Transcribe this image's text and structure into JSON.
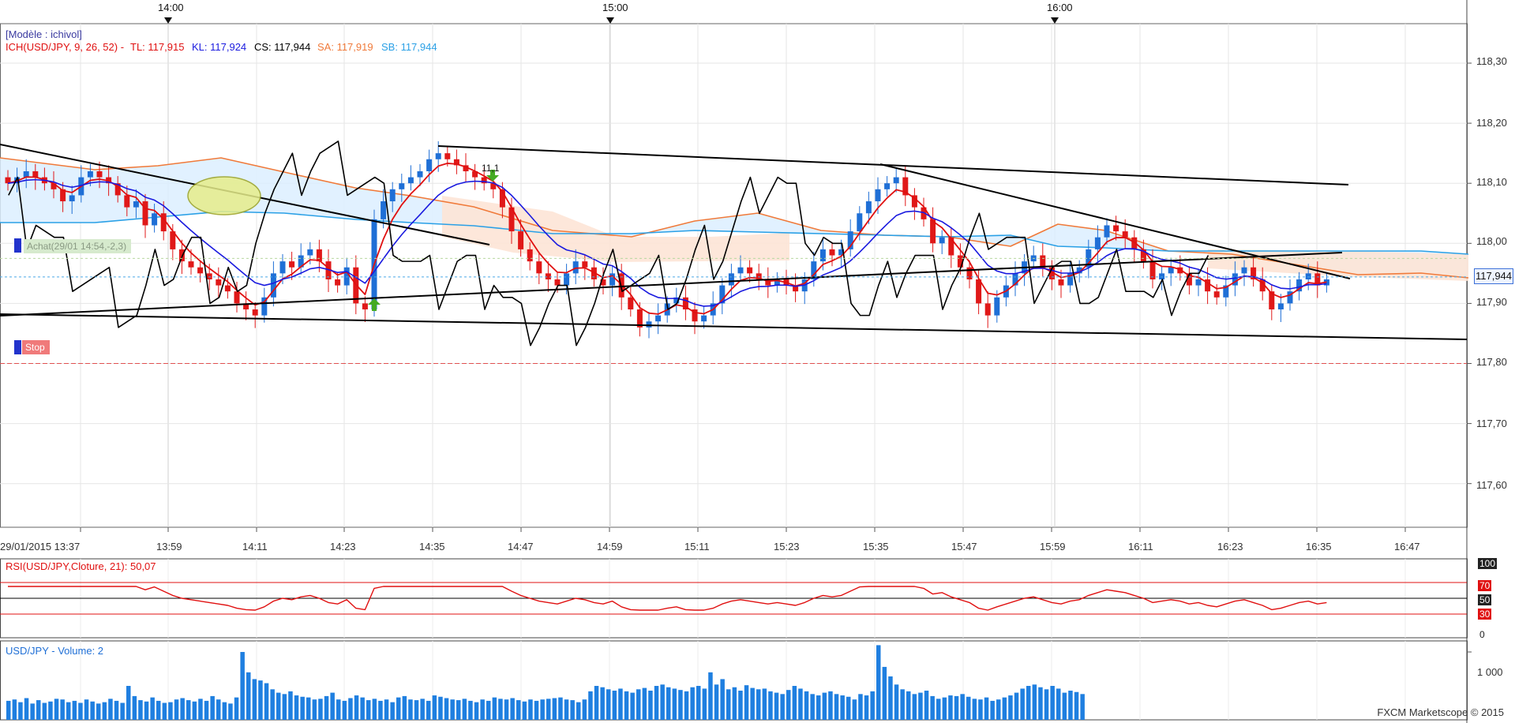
{
  "top_axis": {
    "ticks": [
      "14:00",
      "15:00",
      "16:00"
    ]
  },
  "main": {
    "model_label": "[Modèle : ichivol]",
    "legend": {
      "ich": "ICH(USD/JPY, 9, 26, 52) -",
      "tl": "TL: 117,915",
      "kl": "KL: 117,924",
      "cs": "CS: 117,944",
      "sa": "SA: 117,919",
      "sb": "SB: 117,944"
    },
    "y_ticks": [
      "118,30",
      "118,20",
      "118,10",
      "118,00",
      "117,90",
      "117,80",
      "117,70",
      "117,60"
    ],
    "last_price": "117,944",
    "buy_label": "Achat(29/01 14:54,-2,3)",
    "stop_label": "Stop",
    "trade_annotation": "11,1",
    "colors": {
      "tl": "#e01010",
      "kl": "#1a1adf",
      "cs": "#000000",
      "sa": "#f07a3a",
      "sb": "#2aa0e6",
      "up": "#1f6fd6",
      "down": "#e01818"
    }
  },
  "x_axis": {
    "labels": [
      "29/01/2015 13:37",
      "13:59",
      "14:11",
      "14:23",
      "14:35",
      "14:47",
      "14:59",
      "15:11",
      "15:23",
      "15:35",
      "15:47",
      "15:59",
      "16:11",
      "16:23",
      "16:35",
      "16:47"
    ]
  },
  "rsi": {
    "label": "RSI(USD/JPY,Cloture, 21): 50,07",
    "levels": [
      "100",
      "70",
      "50",
      "30",
      "0"
    ]
  },
  "volume": {
    "label": "USD/JPY - Volume: 2",
    "y_tick": "1 000"
  },
  "footer": {
    "watermark": "FXCM Marketscope © 2015"
  },
  "chart_data": [
    {
      "type": "candlestick",
      "title": "ICH(USD/JPY, 9, 26, 52)",
      "ylim": [
        117.53,
        118.37
      ],
      "y_ticks": [
        118.3,
        118.2,
        118.1,
        118.0,
        117.9,
        117.8,
        117.7,
        117.6
      ],
      "x_ticks": [
        "13:37",
        "13:59",
        "14:11",
        "14:23",
        "14:35",
        "14:47",
        "14:59",
        "15:11",
        "15:23",
        "15:35",
        "15:47",
        "15:59",
        "16:11",
        "16:23",
        "16:35",
        "16:47"
      ],
      "last_value": 117.944,
      "indicators": {
        "TL": 117.915,
        "KL": 117.924,
        "CS": 117.944,
        "SA": 117.919,
        "SB": 117.944
      },
      "stop_level": 117.8,
      "close_approx": [
        118.1,
        118.11,
        118.12,
        118.11,
        118.1,
        118.09,
        118.07,
        118.08,
        118.11,
        118.12,
        118.11,
        118.1,
        118.08,
        118.06,
        118.07,
        118.03,
        118.05,
        118.02,
        117.99,
        117.97,
        117.96,
        117.95,
        117.94,
        117.93,
        117.92,
        117.9,
        117.89,
        117.88,
        117.91,
        117.95,
        117.97,
        117.96,
        117.98,
        117.99,
        117.97,
        117.94,
        117.93,
        117.96,
        117.9,
        117.89,
        118.04,
        118.07,
        118.09,
        118.1,
        118.11,
        118.12,
        118.14,
        118.15,
        118.14,
        118.13,
        118.12,
        118.11,
        118.1,
        118.09,
        118.06,
        118.02,
        117.99,
        117.97,
        117.95,
        117.94,
        117.93,
        117.95,
        117.97,
        117.96,
        117.94,
        117.93,
        117.95,
        117.91,
        117.89,
        117.86,
        117.87,
        117.88,
        117.9,
        117.91,
        117.89,
        117.87,
        117.88,
        117.9,
        117.93,
        117.95,
        117.96,
        117.95,
        117.94,
        117.93,
        117.94,
        117.93,
        117.92,
        117.94,
        117.97,
        117.99,
        117.98,
        117.99,
        118.02,
        118.05,
        118.07,
        118.09,
        118.1,
        118.11,
        118.08,
        118.06,
        118.04,
        118.0,
        118.01,
        117.98,
        117.96,
        117.94,
        117.9,
        117.88,
        117.91,
        117.93,
        117.95,
        117.97,
        117.98,
        117.96,
        117.94,
        117.93,
        117.95,
        117.96,
        117.99,
        118.01,
        118.03,
        118.02,
        118.01,
        117.99,
        117.97,
        117.94,
        117.95,
        117.96,
        117.95,
        117.93,
        117.94,
        117.92,
        117.91,
        117.93,
        117.95,
        117.96,
        117.94,
        117.92,
        117.89,
        117.9,
        117.92,
        117.94,
        117.95,
        117.93,
        117.94
      ]
    },
    {
      "type": "line",
      "title": "RSI(USD/JPY,Cloture, 21)",
      "ylim": [
        0,
        100
      ],
      "levels": [
        70,
        50,
        30
      ],
      "last_value": 50.07
    },
    {
      "type": "bar",
      "title": "USD/JPY - Volume",
      "last_value": 2,
      "y_ticks": [
        1000
      ],
      "values": [
        280,
        300,
        260,
        320,
        240,
        290,
        250,
        270,
        310,
        300,
        260,
        280,
        250,
        300,
        270,
        240,
        260,
        310,
        280,
        250,
        500,
        350,
        290,
        270,
        330,
        280,
        250,
        260,
        300,
        320,
        290,
        270,
        310,
        280,
        350,
        300,
        260,
        240,
        330,
        1000,
        700,
        600,
        580,
        540,
        450,
        400,
        380,
        420,
        360,
        340,
        330,
        300,
        310,
        350,
        400,
        300,
        280,
        320,
        360,
        330,
        290,
        310,
        280,
        300,
        260,
        330,
        350,
        300,
        290,
        310,
        280,
        360,
        340,
        320,
        300,
        290,
        310,
        280,
        260,
        300,
        280,
        330,
        310,
        300,
        320,
        290,
        270,
        300,
        280,
        300,
        310,
        320,
        330,
        300,
        290,
        260,
        300,
        420,
        500,
        480,
        450,
        430,
        460,
        420,
        400,
        450,
        470,
        430,
        500,
        520,
        480,
        460,
        440,
        420,
        480,
        500,
        460,
        700,
        520,
        600,
        450,
        480,
        430,
        510,
        470,
        450,
        460,
        420,
        400,
        380,
        440,
        500,
        460,
        420,
        380,
        360,
        400,
        420,
        380,
        360,
        340,
        300,
        380,
        360,
        420,
        1100,
        780,
        640,
        520,
        450,
        420,
        380,
        400,
        430,
        350,
        310,
        330,
        360,
        350,
        380,
        340,
        310,
        300,
        330,
        280,
        300,
        330,
        360,
        400,
        460,
        500,
        520,
        480,
        450,
        500,
        460,
        400,
        430,
        410,
        380
      ]
    }
  ]
}
